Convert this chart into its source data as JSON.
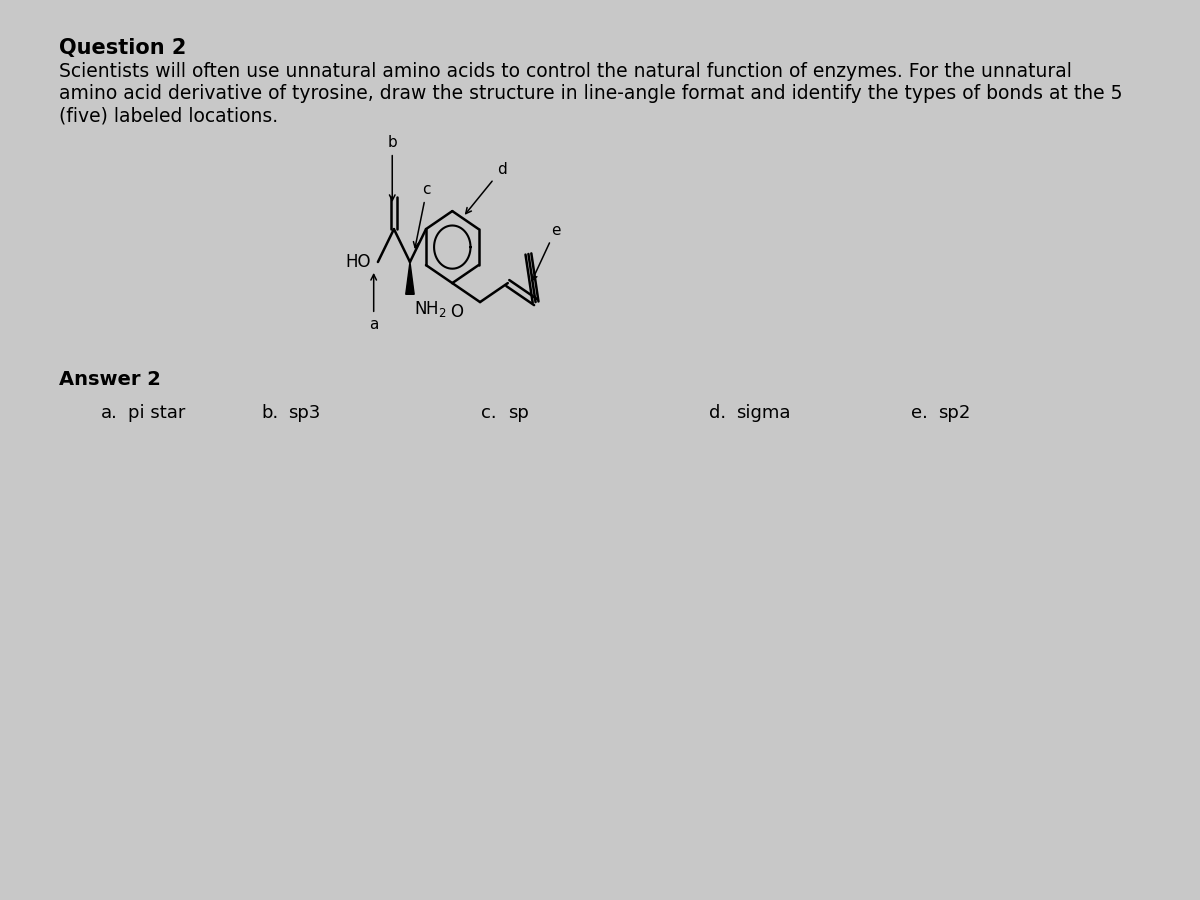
{
  "bg_color": "#c8c8c8",
  "title": "Question 2",
  "question_line1": "Scientists will often use unnatural amino acids to control the natural function of enzymes. For the unnatural",
  "question_line2": "amino acid derivative of tyrosine, draw the structure in line-angle format and identify the types of bonds at the 5",
  "question_line3": "(five) labeled locations.",
  "answer_title": "Answer 2",
  "answers": [
    {
      "label": "a.",
      "text": "pi star"
    },
    {
      "label": "b.",
      "text": "sp3"
    },
    {
      "label": "c.",
      "text": "sp"
    },
    {
      "label": "d.",
      "text": "sigma"
    },
    {
      "label": "e.",
      "text": "sp2"
    }
  ]
}
